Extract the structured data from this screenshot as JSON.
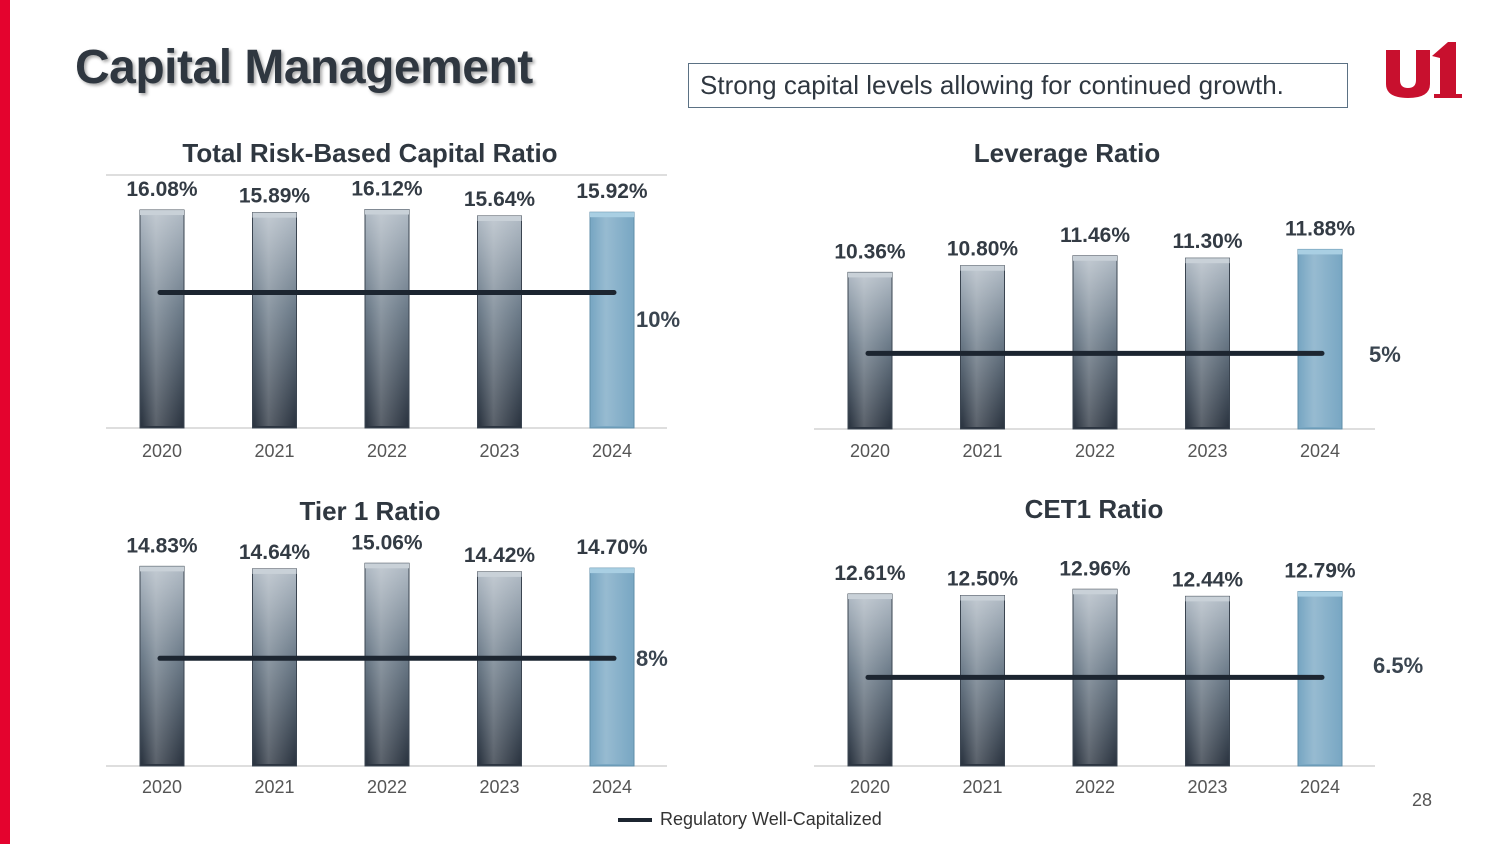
{
  "slide": {
    "title": "Capital Management",
    "tagline": "Strong capital levels allowing for continued growth.",
    "page_number": "28",
    "legend_label": "Regulatory Well-Capitalized",
    "colors": {
      "accent_red": "#e4032e",
      "bar_dark": "#2b3440",
      "bar_light": "#b2bcc6",
      "bar_highlight": "#7aa8c4",
      "regulatory_line": "#1c2530"
    }
  },
  "chart_data": [
    {
      "type": "bar",
      "title": "Total Risk-Based Capital Ratio",
      "categories": [
        "2020",
        "2021",
        "2022",
        "2023",
        "2024"
      ],
      "values": [
        16.08,
        15.89,
        16.12,
        15.64,
        15.92
      ],
      "value_labels": [
        "16.08%",
        "15.89%",
        "16.12%",
        "15.64%",
        "15.92%"
      ],
      "highlight_index": 4,
      "ylim": [
        0,
        16.6
      ],
      "reference": {
        "value": 10,
        "label": "10%"
      }
    },
    {
      "type": "bar",
      "title": "Leverage Ratio",
      "categories": [
        "2020",
        "2021",
        "2022",
        "2023",
        "2024"
      ],
      "values": [
        10.36,
        10.8,
        11.46,
        11.3,
        11.88
      ],
      "value_labels": [
        "10.36%",
        "10.80%",
        "11.46%",
        "11.30%",
        "11.88%"
      ],
      "highlight_index": 4,
      "ylim": [
        0,
        17.2
      ],
      "reference": {
        "value": 5,
        "label": "5%"
      }
    },
    {
      "type": "bar",
      "title": "Tier 1 Ratio",
      "categories": [
        "2020",
        "2021",
        "2022",
        "2023",
        "2024"
      ],
      "values": [
        14.83,
        14.64,
        15.06,
        14.42,
        14.7
      ],
      "value_labels": [
        "14.83%",
        "14.64%",
        "15.06%",
        "14.42%",
        "14.70%"
      ],
      "highlight_index": 4,
      "ylim": [
        0,
        15.6
      ],
      "reference": {
        "value": 8,
        "label": "8%"
      }
    },
    {
      "type": "bar",
      "title": "CET1 Ratio",
      "categories": [
        "2020",
        "2021",
        "2022",
        "2023",
        "2024"
      ],
      "values": [
        12.61,
        12.5,
        12.96,
        12.44,
        12.79
      ],
      "value_labels": [
        "12.61%",
        "12.50%",
        "12.96%",
        "12.44%",
        "12.79%"
      ],
      "highlight_index": 4,
      "ylim": [
        0,
        16.5
      ],
      "reference": {
        "value": 6.5,
        "label": "6.5%"
      }
    }
  ]
}
